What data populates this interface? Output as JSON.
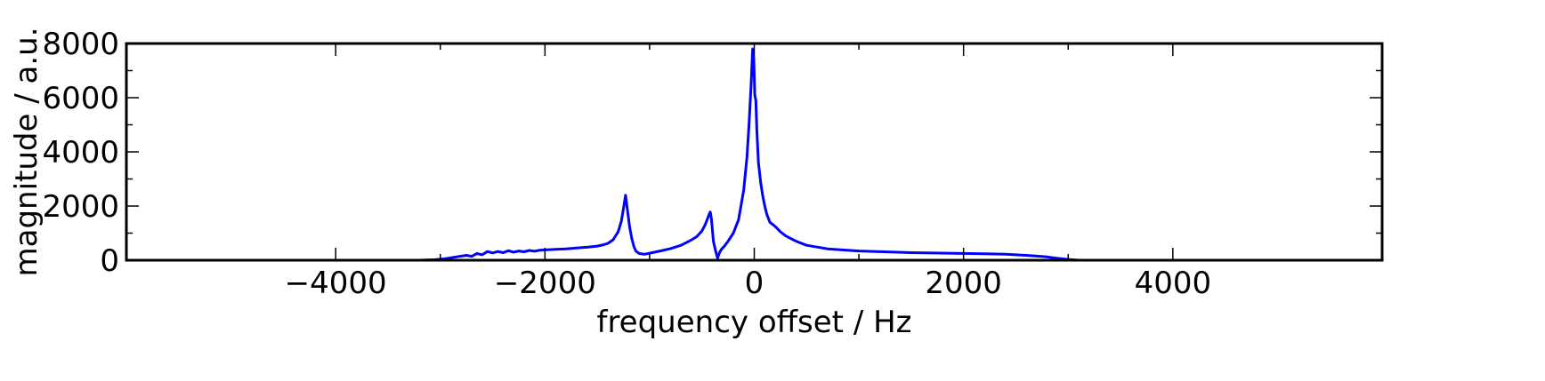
{
  "chart_data": {
    "type": "line",
    "title": "",
    "xlabel": "frequency offset / Hz",
    "ylabel": "magnitude / a.u.",
    "xlim": [
      -6000,
      6000
    ],
    "ylim": [
      0,
      8000
    ],
    "xticks": [
      -4000,
      -2000,
      0,
      2000,
      4000
    ],
    "xtick_labels": [
      "−4000",
      "−2000",
      "0",
      "2000",
      "4000"
    ],
    "yticks": [
      0,
      2000,
      4000,
      6000,
      8000
    ],
    "ytick_labels": [
      "0",
      "2000",
      "4000",
      "6000",
      "8000"
    ],
    "grid": false,
    "legend": "none",
    "line_color": "#0000ff",
    "series": [
      {
        "values_x": [
          -6000,
          -3200,
          -3050,
          -2950,
          -2850,
          -2750,
          -2700,
          -2650,
          -2600,
          -2550,
          -2500,
          -2450,
          -2400,
          -2350,
          -2300,
          -2250,
          -2200,
          -2150,
          -2100,
          -2050,
          -2000,
          -1900,
          -1800,
          -1700,
          -1600,
          -1500,
          -1450,
          -1400,
          -1350,
          -1300,
          -1270,
          -1250,
          -1230,
          -1210,
          -1190,
          -1170,
          -1150,
          -1130,
          -1100,
          -1050,
          -1000,
          -900,
          -800,
          -700,
          -650,
          -600,
          -550,
          -500,
          -470,
          -450,
          -430,
          -420,
          -410,
          -400,
          -390,
          -370,
          -350,
          -330,
          -310,
          -290,
          -250,
          -200,
          -150,
          -100,
          -70,
          -50,
          -30,
          -15,
          -5,
          5,
          15,
          25,
          40,
          60,
          80,
          100,
          120,
          150,
          200,
          250,
          300,
          400,
          500,
          700,
          1000,
          1500,
          2000,
          2200,
          2400,
          2600,
          2800,
          2900,
          3000,
          3100,
          6000
        ],
        "values_y": [
          0,
          0,
          20,
          60,
          120,
          180,
          140,
          250,
          200,
          320,
          270,
          320,
          280,
          350,
          300,
          340,
          310,
          360,
          330,
          370,
          380,
          400,
          420,
          450,
          480,
          520,
          560,
          620,
          750,
          1050,
          1450,
          1900,
          2400,
          1800,
          1200,
          800,
          500,
          330,
          250,
          220,
          260,
          340,
          430,
          550,
          650,
          750,
          870,
          1080,
          1300,
          1500,
          1700,
          1780,
          1550,
          1100,
          700,
          350,
          80,
          300,
          420,
          500,
          700,
          1000,
          1500,
          2600,
          3800,
          5000,
          6500,
          7800,
          7500,
          6100,
          5900,
          4800,
          3600,
          2900,
          2400,
          2000,
          1700,
          1400,
          1250,
          1050,
          900,
          700,
          550,
          420,
          340,
          280,
          250,
          240,
          220,
          180,
          120,
          70,
          30,
          0,
          0
        ]
      }
    ]
  }
}
